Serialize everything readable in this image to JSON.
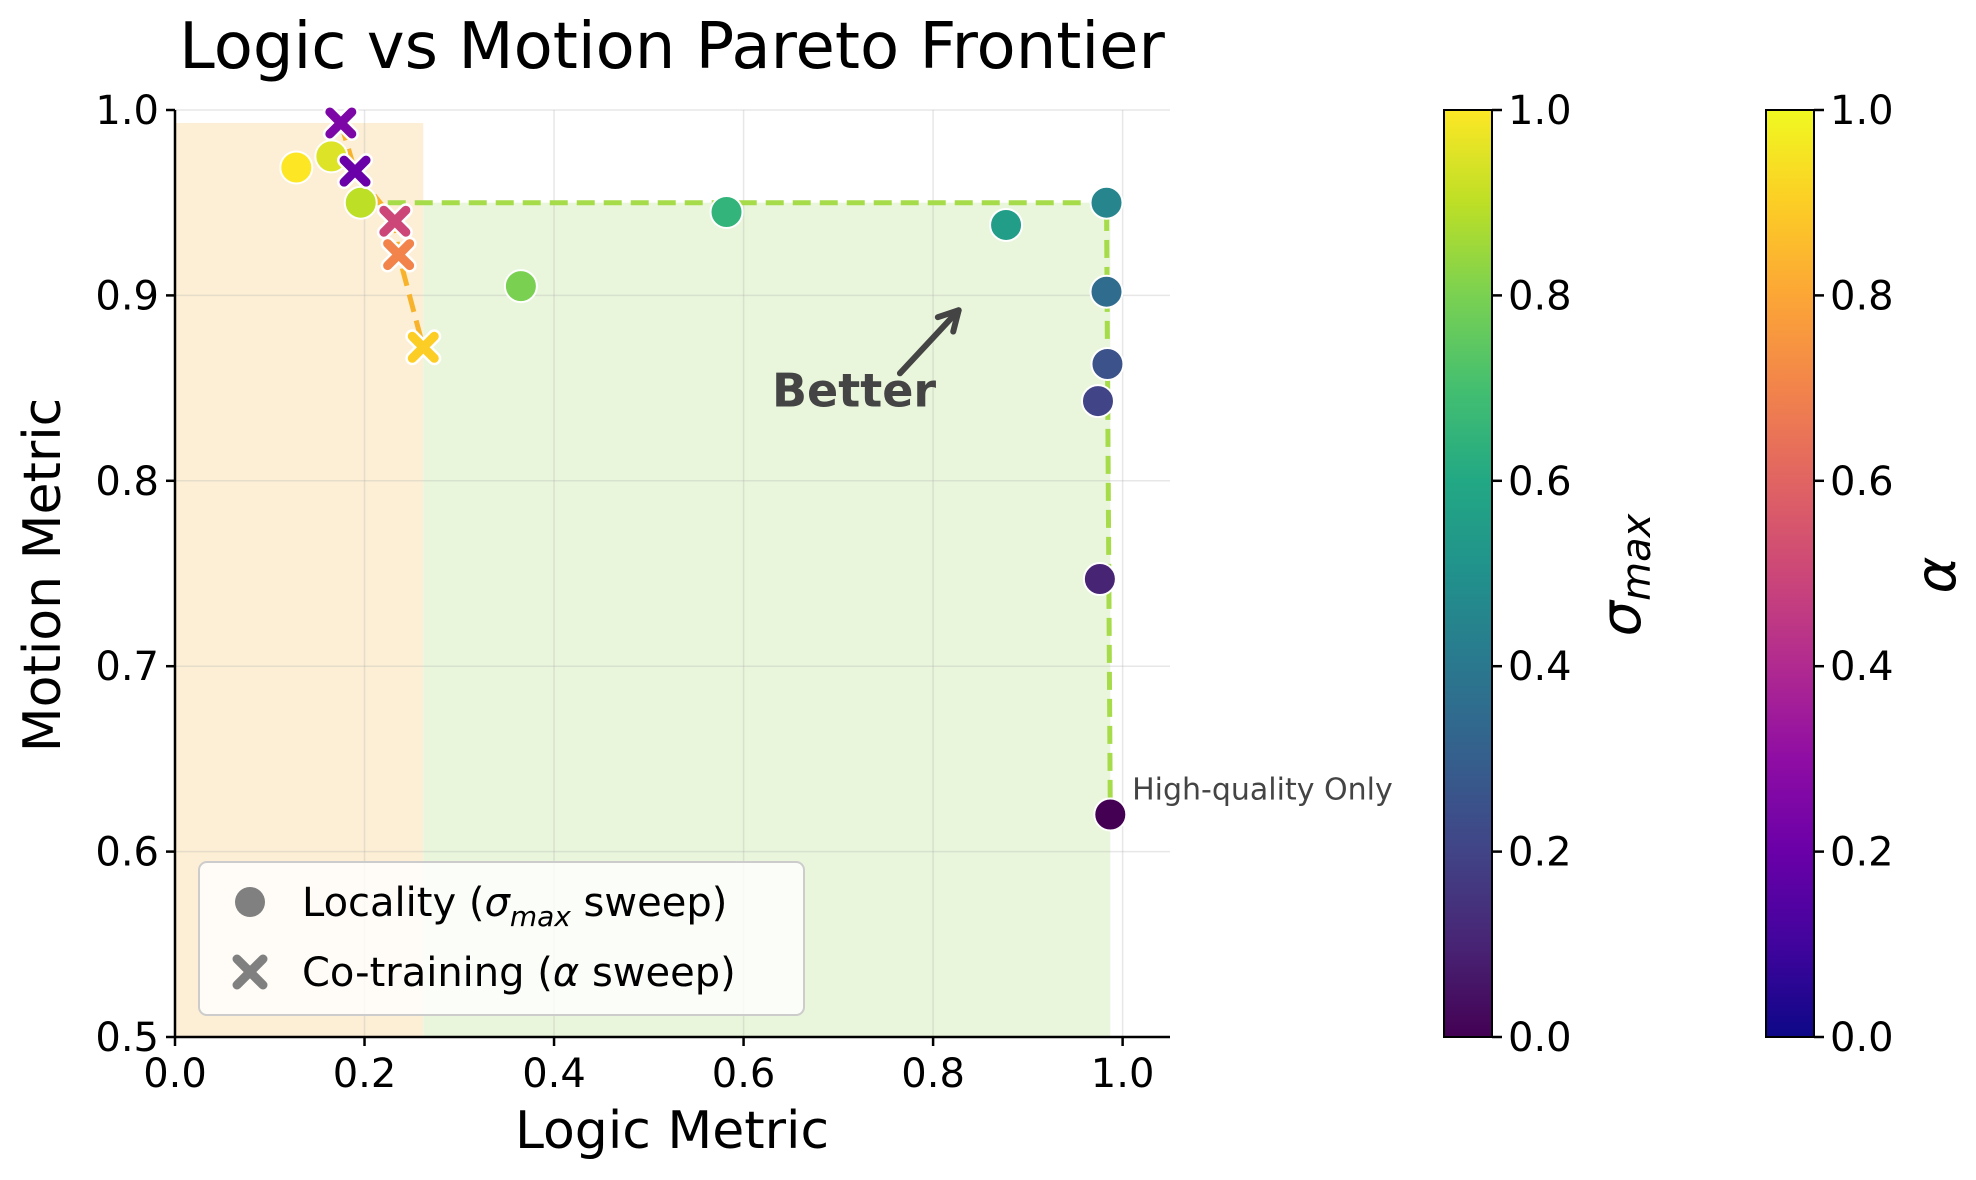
{
  "chart_data": {
    "type": "scatter",
    "title": "Logic vs Motion Pareto Frontier",
    "xlabel": "Logic Metric",
    "ylabel": "Motion Metric",
    "xlim": [
      0.0,
      1.05
    ],
    "ylim": [
      0.5,
      1.0
    ],
    "xticks": [
      "0.0",
      "0.2",
      "0.4",
      "0.6",
      "0.8",
      "1.0"
    ],
    "yticks": [
      "0.5",
      "0.6",
      "0.7",
      "0.8",
      "0.9",
      "1.0"
    ],
    "grid": true,
    "series": [
      {
        "name": "Locality",
        "legend_main": "Locality (",
        "legend_symbol": "σ",
        "legend_sub": "max",
        "legend_tail": " sweep)",
        "marker": "circle",
        "colormap": "viridis",
        "points": [
          {
            "x": 0.987,
            "y": 0.62,
            "c": 0.0
          },
          {
            "x": 0.976,
            "y": 0.747,
            "c": 0.1
          },
          {
            "x": 0.974,
            "y": 0.843,
            "c": 0.2
          },
          {
            "x": 0.984,
            "y": 0.863,
            "c": 0.25
          },
          {
            "x": 0.983,
            "y": 0.902,
            "c": 0.35
          },
          {
            "x": 0.983,
            "y": 0.95,
            "c": 0.45
          },
          {
            "x": 0.877,
            "y": 0.938,
            "c": 0.55
          },
          {
            "x": 0.582,
            "y": 0.945,
            "c": 0.65
          },
          {
            "x": 0.365,
            "y": 0.905,
            "c": 0.8
          },
          {
            "x": 0.196,
            "y": 0.95,
            "c": 0.9
          },
          {
            "x": 0.165,
            "y": 0.975,
            "c": 0.95
          },
          {
            "x": 0.128,
            "y": 0.969,
            "c": 1.0
          }
        ]
      },
      {
        "name": "Co-training",
        "legend_main": "Co-training (",
        "legend_symbol": "α",
        "legend_sub": "",
        "legend_tail": " sweep)",
        "marker": "x",
        "colormap": "plasma",
        "points": [
          {
            "x": 0.175,
            "y": 0.993,
            "c": 0.25
          },
          {
            "x": 0.19,
            "y": 0.967,
            "c": 0.2
          },
          {
            "x": 0.232,
            "y": 0.94,
            "c": 0.5
          },
          {
            "x": 0.236,
            "y": 0.922,
            "c": 0.7
          },
          {
            "x": 0.262,
            "y": 0.872,
            "c": 0.9
          }
        ]
      }
    ],
    "frontiers": [
      {
        "name": "locality-frontier",
        "color": "#a6dc4a",
        "points": [
          [
            0.196,
            0.95
          ],
          [
            0.983,
            0.95
          ],
          [
            0.987,
            0.62
          ]
        ]
      },
      {
        "name": "cotraining-frontier",
        "color": "#f7b32b",
        "points": [
          [
            0.175,
            0.993
          ],
          [
            0.19,
            0.967
          ],
          [
            0.232,
            0.94
          ],
          [
            0.236,
            0.922
          ],
          [
            0.262,
            0.872
          ]
        ]
      }
    ],
    "regions": [
      {
        "name": "cotraining-region",
        "color": "#fdefd5",
        "x": [
          0.0,
          0.262
        ],
        "y": [
          0.5,
          0.993
        ]
      },
      {
        "name": "locality-region",
        "color": "#e9f6dc",
        "x": [
          0.262,
          0.987
        ],
        "y": [
          0.5,
          0.95
        ]
      }
    ],
    "annotations": {
      "better": {
        "text": "Better",
        "x": 0.63,
        "y": 0.84,
        "arrow_from": [
          0.765,
          0.858
        ],
        "arrow_to": [
          0.827,
          0.892
        ]
      },
      "high_quality": {
        "text": "High-quality Only",
        "x": 1.01,
        "y": 0.628
      }
    },
    "colorbars": [
      {
        "name": "sigma-colorbar",
        "title_symbol": "σ",
        "title_sub": "max",
        "colormap": "viridis",
        "range": [
          0.0,
          1.0
        ],
        "ticks": [
          "0.0",
          "0.2",
          "0.4",
          "0.6",
          "0.8",
          "1.0"
        ]
      },
      {
        "name": "alpha-colorbar",
        "title_symbol": "α",
        "title_sub": "",
        "colormap": "plasma",
        "range": [
          0.0,
          1.0
        ],
        "ticks": [
          "0.0",
          "0.2",
          "0.4",
          "0.6",
          "0.8",
          "1.0"
        ]
      }
    ]
  }
}
